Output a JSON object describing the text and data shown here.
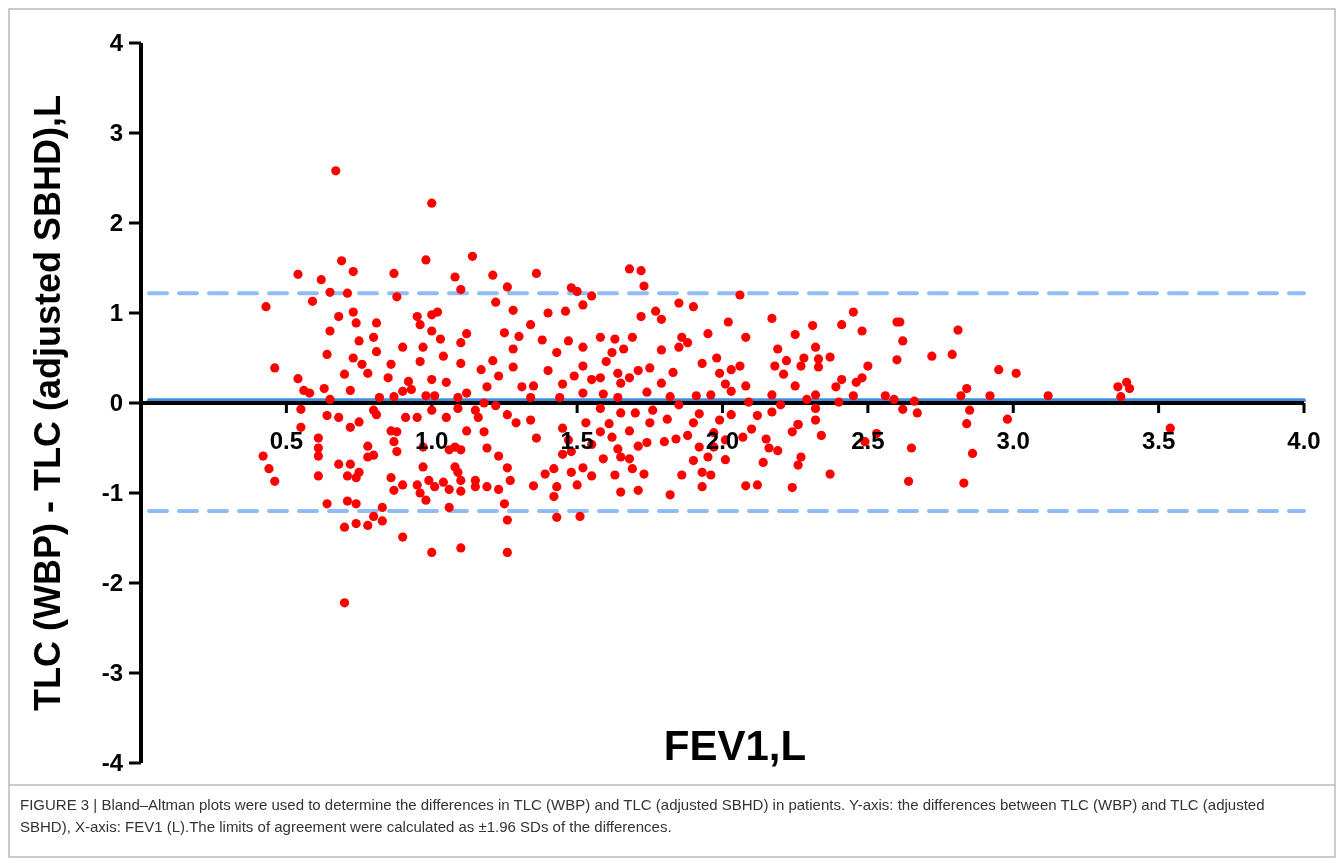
{
  "chart_data": {
    "type": "scatter",
    "xlabel": "FEV1,L",
    "ylabel": "TLC (WBP) - TLC (adjusted SBHD),L",
    "annotations": [
      "FIGURE 3 | Bland–Altman plots were used to determine the differences in TLC (WBP) and TLC (adjusted SBHD) in patients. Y-axis: the differences between TLC (WBP) and TLC (adjusted SBHD), X-axis: FEV1 (L).The limits of agreement were calculated as ±1.96 SDs of the differences."
    ],
    "xlim": [
      0,
      4
    ],
    "ylim": [
      -4,
      4
    ],
    "xticks": [
      {
        "value": 0.5,
        "label": "0.5"
      },
      {
        "value": 1,
        "label": "1.0"
      },
      {
        "value": 1.5,
        "label": "1.5"
      },
      {
        "value": 2,
        "label": "2.0"
      },
      {
        "value": 2.5,
        "label": "2.5"
      },
      {
        "value": 3,
        "label": "3.0"
      },
      {
        "value": 3.5,
        "label": "3.5"
      },
      {
        "value": 4,
        "label": "4.0"
      }
    ],
    "yticks": [
      -4,
      -3,
      -2,
      -1,
      0,
      1,
      2,
      3,
      4
    ],
    "marker": "circle",
    "ref_lines": [
      {
        "axis": "y",
        "value": 1.22,
        "color": "#8fbdf5",
        "line_style": "dashed"
      },
      {
        "axis": "y",
        "value": -1.2,
        "color": "#8fbdf5",
        "line_style": "dashed"
      },
      {
        "axis": "y",
        "value": 0.03,
        "color": "#3f8fe0",
        "line_style": "solid"
      }
    ],
    "series": [
      {
        "color": "#ff0000",
        "x": [
          0.67,
          1.0,
          0.98,
          1.14,
          0.69,
          0.54,
          0.73,
          0.87,
          0.62,
          1.08,
          1.21,
          1.36,
          0.65,
          0.71,
          1.1,
          1.26,
          0.43,
          0.59,
          0.88,
          1.22,
          1.28,
          0.73,
          0.68,
          0.95,
          1.0,
          1.02,
          1.4,
          0.65,
          0.74,
          0.81,
          0.96,
          1.0,
          1.12,
          1.25,
          1.34,
          0.8,
          1.03,
          0.75,
          1.3,
          0.64,
          0.9,
          0.97,
          1.1,
          1.38,
          1.28,
          0.73,
          0.81,
          0.86,
          1.04,
          1.1,
          1.21,
          0.46,
          0.76,
          0.96,
          1.17,
          1.28,
          1.4,
          0.7,
          0.78,
          0.54,
          0.85,
          0.92,
          1.0,
          1.05,
          1.23,
          0.56,
          0.58,
          0.63,
          0.72,
          0.9,
          0.93,
          1.12,
          1.19,
          1.31,
          1.35,
          0.65,
          0.82,
          0.87,
          0.98,
          1.01,
          1.09,
          1.18,
          1.34,
          0.55,
          0.64,
          0.68,
          0.72,
          0.75,
          0.8,
          0.81,
          0.91,
          0.95,
          1.0,
          1.05,
          1.09,
          1.15,
          1.16,
          1.22,
          1.26,
          1.29,
          1.34,
          0.55,
          0.61,
          0.88,
          1.12,
          1.18,
          1.36,
          0.42,
          0.44,
          0.46,
          0.61,
          0.61,
          0.61,
          0.68,
          0.72,
          0.71,
          0.74,
          0.75,
          0.78,
          0.78,
          0.8,
          0.86,
          0.87,
          0.88,
          0.86,
          0.87,
          0.9,
          0.97,
          0.97,
          0.99,
          0.95,
          0.96,
          0.98,
          1.01,
          1.04,
          1.06,
          1.06,
          1.08,
          1.1,
          1.08,
          1.09,
          1.1,
          1.1,
          1.15,
          1.15,
          1.19,
          1.23,
          1.27,
          1.26,
          1.23,
          1.19,
          0.64,
          0.71,
          0.74,
          0.83,
          1.06,
          1.25,
          0.7,
          0.74,
          0.78,
          0.8,
          0.83,
          0.9,
          1.0,
          1.1,
          1.26,
          0.7,
          1.26,
          1.35,
          1.39,
          1.68,
          1.72,
          1.73,
          1.48,
          1.5,
          1.55,
          2.06,
          1.52,
          1.46,
          1.85,
          1.9,
          1.77,
          1.79,
          1.72,
          2.02,
          2.17,
          2.31,
          2.41,
          1.47,
          1.58,
          1.63,
          1.69,
          1.86,
          1.95,
          2.08,
          2.25,
          1.52,
          1.66,
          1.85,
          1.88,
          1.79,
          2.32,
          2.19,
          1.43,
          1.62,
          1.6,
          1.98,
          2.37,
          2.28,
          2.22,
          1.52,
          1.93,
          2.06,
          2.33,
          2.18,
          2.27,
          2.33,
          1.75,
          2.03,
          1.99,
          1.83,
          1.64,
          1.71,
          1.49,
          1.58,
          1.68,
          2.21,
          2.41,
          1.45,
          1.55,
          1.65,
          1.79,
          2.01,
          2.08,
          2.25,
          2.39,
          1.52,
          1.59,
          1.74,
          1.91,
          1.96,
          2.03,
          2.17,
          2.32,
          1.44,
          1.64,
          1.82,
          2.09,
          2.29,
          2.4,
          1.58,
          1.65,
          1.7,
          1.76,
          1.85,
          1.92,
          1.99,
          2.03,
          2.12,
          2.17,
          2.2,
          2.26,
          2.32,
          2.32,
          1.53,
          1.61,
          1.75,
          1.81,
          1.45,
          1.47,
          1.55,
          1.58,
          1.62,
          1.68,
          1.71,
          1.74,
          1.8,
          1.84,
          1.88,
          1.9,
          1.97,
          1.97,
          2.01,
          2.07,
          2.1,
          2.15,
          2.16,
          2.24,
          2.26,
          2.34,
          1.45,
          1.48,
          1.59,
          1.64,
          1.65,
          1.68,
          1.92,
          1.9,
          1.95,
          2.01,
          2.14,
          2.19,
          2.26,
          2.27,
          1.42,
          1.48,
          1.52,
          1.55,
          1.63,
          1.69,
          1.73,
          1.86,
          1.93,
          1.96,
          2.37,
          1.43,
          1.5,
          1.65,
          1.71,
          1.82,
          1.93,
          2.08,
          2.12,
          2.24,
          1.42,
          1.43,
          1.51,
          2.45,
          2.6,
          2.61,
          2.48,
          2.62,
          2.81,
          2.72,
          2.79,
          2.6,
          2.5,
          2.48,
          2.46,
          2.95,
          3.01,
          2.84,
          2.82,
          2.45,
          2.56,
          2.59,
          2.66,
          2.92,
          3.12,
          3.36,
          3.39,
          3.4,
          3.37,
          2.62,
          2.67,
          2.85,
          2.84,
          2.98,
          3.54,
          2.53,
          2.49,
          2.65,
          2.86,
          2.64,
          2.83
        ],
        "values": [
          2.58,
          2.22,
          1.59,
          1.63,
          1.58,
          1.43,
          1.46,
          1.44,
          1.37,
          1.4,
          1.42,
          1.44,
          1.23,
          1.22,
          1.26,
          1.29,
          1.07,
          1.13,
          1.18,
          1.12,
          1.03,
          1.01,
          0.96,
          0.96,
          0.98,
          1.01,
          1.0,
          0.8,
          0.89,
          0.89,
          0.87,
          0.8,
          0.77,
          0.78,
          0.87,
          0.73,
          0.71,
          0.69,
          0.74,
          0.54,
          0.62,
          0.62,
          0.67,
          0.7,
          0.6,
          0.5,
          0.57,
          0.43,
          0.52,
          0.44,
          0.47,
          0.39,
          0.43,
          0.46,
          0.37,
          0.4,
          0.36,
          0.32,
          0.33,
          0.27,
          0.28,
          0.24,
          0.26,
          0.23,
          0.3,
          0.14,
          0.11,
          0.16,
          0.14,
          0.13,
          0.15,
          0.11,
          0.18,
          0.18,
          0.19,
          0.04,
          0.06,
          0.07,
          0.08,
          0.08,
          0.06,
          0.0,
          0.06,
          -0.07,
          -0.14,
          -0.16,
          -0.27,
          -0.21,
          -0.08,
          -0.13,
          -0.16,
          -0.16,
          -0.08,
          -0.16,
          -0.06,
          -0.08,
          -0.16,
          -0.03,
          -0.13,
          -0.22,
          -0.19,
          -0.27,
          -0.39,
          -0.32,
          -0.31,
          -0.32,
          -0.39,
          -0.59,
          -0.73,
          -0.87,
          -0.5,
          -0.59,
          -0.81,
          -0.68,
          -0.68,
          -0.81,
          -0.83,
          -0.77,
          -0.48,
          -0.6,
          -0.58,
          -0.31,
          -0.43,
          -0.54,
          -0.83,
          -0.97,
          -0.91,
          -0.49,
          -0.71,
          -0.86,
          -0.91,
          -1.0,
          -1.08,
          -0.93,
          -0.88,
          -0.96,
          -0.52,
          -0.49,
          -0.52,
          -0.71,
          -0.77,
          -0.86,
          -0.98,
          -0.86,
          -0.93,
          -0.93,
          -0.96,
          -0.86,
          -0.72,
          -0.59,
          -0.5,
          -1.12,
          -1.09,
          -1.12,
          -1.16,
          -1.16,
          -1.12,
          -1.38,
          -1.34,
          -1.36,
          -1.26,
          -1.31,
          -1.49,
          -1.66,
          -1.61,
          -1.66,
          -2.22,
          -1.3,
          -0.92,
          -0.79,
          1.49,
          1.47,
          1.3,
          1.28,
          1.24,
          1.19,
          1.2,
          1.09,
          1.02,
          1.11,
          1.07,
          1.02,
          0.93,
          0.96,
          0.9,
          0.94,
          0.86,
          0.87,
          0.69,
          0.73,
          0.71,
          0.73,
          0.73,
          0.77,
          0.73,
          0.76,
          0.62,
          0.6,
          0.62,
          0.67,
          0.59,
          0.62,
          0.6,
          0.56,
          0.56,
          0.46,
          0.5,
          0.51,
          0.5,
          0.47,
          0.41,
          0.44,
          0.41,
          0.49,
          0.41,
          0.41,
          0.4,
          0.39,
          0.37,
          0.33,
          0.34,
          0.33,
          0.36,
          0.3,
          0.28,
          0.28,
          0.32,
          0.26,
          0.21,
          0.26,
          0.22,
          0.22,
          0.21,
          0.19,
          0.19,
          0.18,
          0.11,
          0.1,
          0.12,
          0.08,
          0.09,
          0.13,
          0.09,
          0.09,
          0.06,
          0.06,
          0.07,
          0.01,
          0.04,
          0.01,
          -0.06,
          -0.11,
          -0.11,
          -0.08,
          -0.02,
          -0.12,
          -0.19,
          -0.13,
          -0.14,
          -0.1,
          -0.02,
          -0.24,
          -0.19,
          -0.06,
          -0.22,
          -0.23,
          -0.22,
          -0.18,
          -0.28,
          -0.41,
          -0.46,
          -0.32,
          -0.38,
          -0.31,
          -0.48,
          -0.44,
          -0.43,
          -0.4,
          -0.36,
          -0.22,
          -0.33,
          -0.49,
          -0.41,
          -0.38,
          -0.29,
          -0.4,
          -0.5,
          -0.32,
          -0.24,
          -0.36,
          -0.57,
          -0.54,
          -0.62,
          -0.51,
          -0.6,
          -0.62,
          -0.49,
          -0.64,
          -0.6,
          -0.63,
          -0.66,
          -0.53,
          -0.69,
          -0.6,
          -0.73,
          -0.77,
          -0.72,
          -0.81,
          -0.8,
          -0.73,
          -0.79,
          -0.8,
          -0.77,
          -0.8,
          -0.79,
          -0.93,
          -0.91,
          -0.99,
          -0.97,
          -1.02,
          -0.93,
          -0.92,
          -0.91,
          -0.94,
          -1.04,
          -1.27,
          -1.26,
          1.01,
          0.9,
          0.9,
          0.8,
          0.69,
          0.81,
          0.52,
          0.54,
          0.48,
          0.41,
          0.28,
          0.23,
          0.37,
          0.33,
          0.16,
          0.08,
          0.08,
          0.08,
          0.04,
          0.02,
          0.08,
          0.08,
          0.18,
          0.23,
          0.16,
          0.07,
          -0.07,
          -0.11,
          -0.08,
          -0.23,
          -0.18,
          -0.28,
          -0.34,
          -0.43,
          -0.5,
          -0.56,
          -0.87,
          -0.89
        ]
      }
    ]
  }
}
